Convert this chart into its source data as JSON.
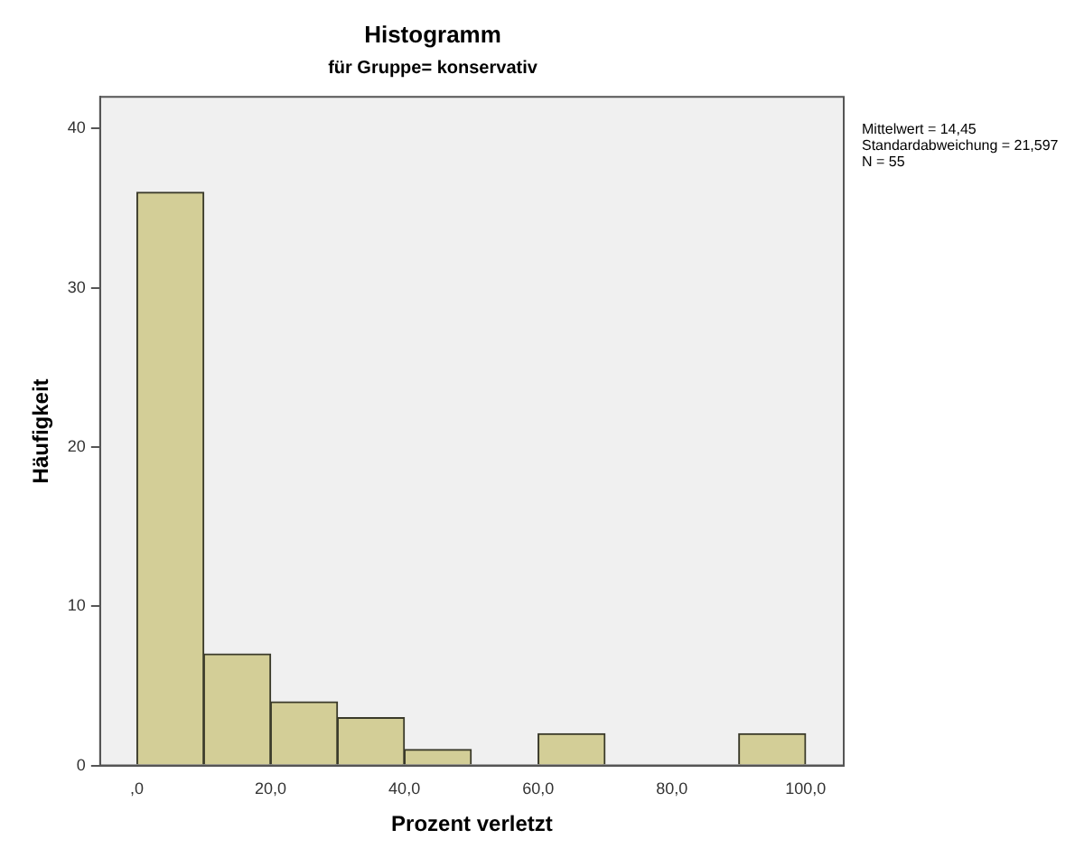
{
  "chart_data": {
    "type": "histogram",
    "title": "Histogramm",
    "subtitle": "für Gruppe= konservativ",
    "xlabel": "Prozent verletzt",
    "ylabel": "Häufigkeit",
    "bins": [
      0,
      10,
      20,
      30,
      40,
      50,
      60,
      70,
      80,
      90,
      100
    ],
    "values": [
      36,
      7,
      4,
      3,
      1,
      0,
      2,
      0,
      0,
      2
    ],
    "color": "#d3ce97",
    "xlim": [
      -5.5,
      105.7
    ],
    "ylim": [
      0,
      42
    ],
    "xticks": [
      {
        "value": 0,
        "label": ",0"
      },
      {
        "value": 20,
        "label": "20,0"
      },
      {
        "value": 40,
        "label": "40,0"
      },
      {
        "value": 60,
        "label": "60,0"
      },
      {
        "value": 80,
        "label": "80,0"
      },
      {
        "value": 100,
        "label": "100,0"
      }
    ],
    "yticks": [
      0,
      10,
      20,
      30,
      40
    ],
    "grid": false,
    "legend": false,
    "annotations": [
      "Mittelwert = 14,45",
      "Standardabweichung = 21,597",
      "N = 55"
    ]
  }
}
